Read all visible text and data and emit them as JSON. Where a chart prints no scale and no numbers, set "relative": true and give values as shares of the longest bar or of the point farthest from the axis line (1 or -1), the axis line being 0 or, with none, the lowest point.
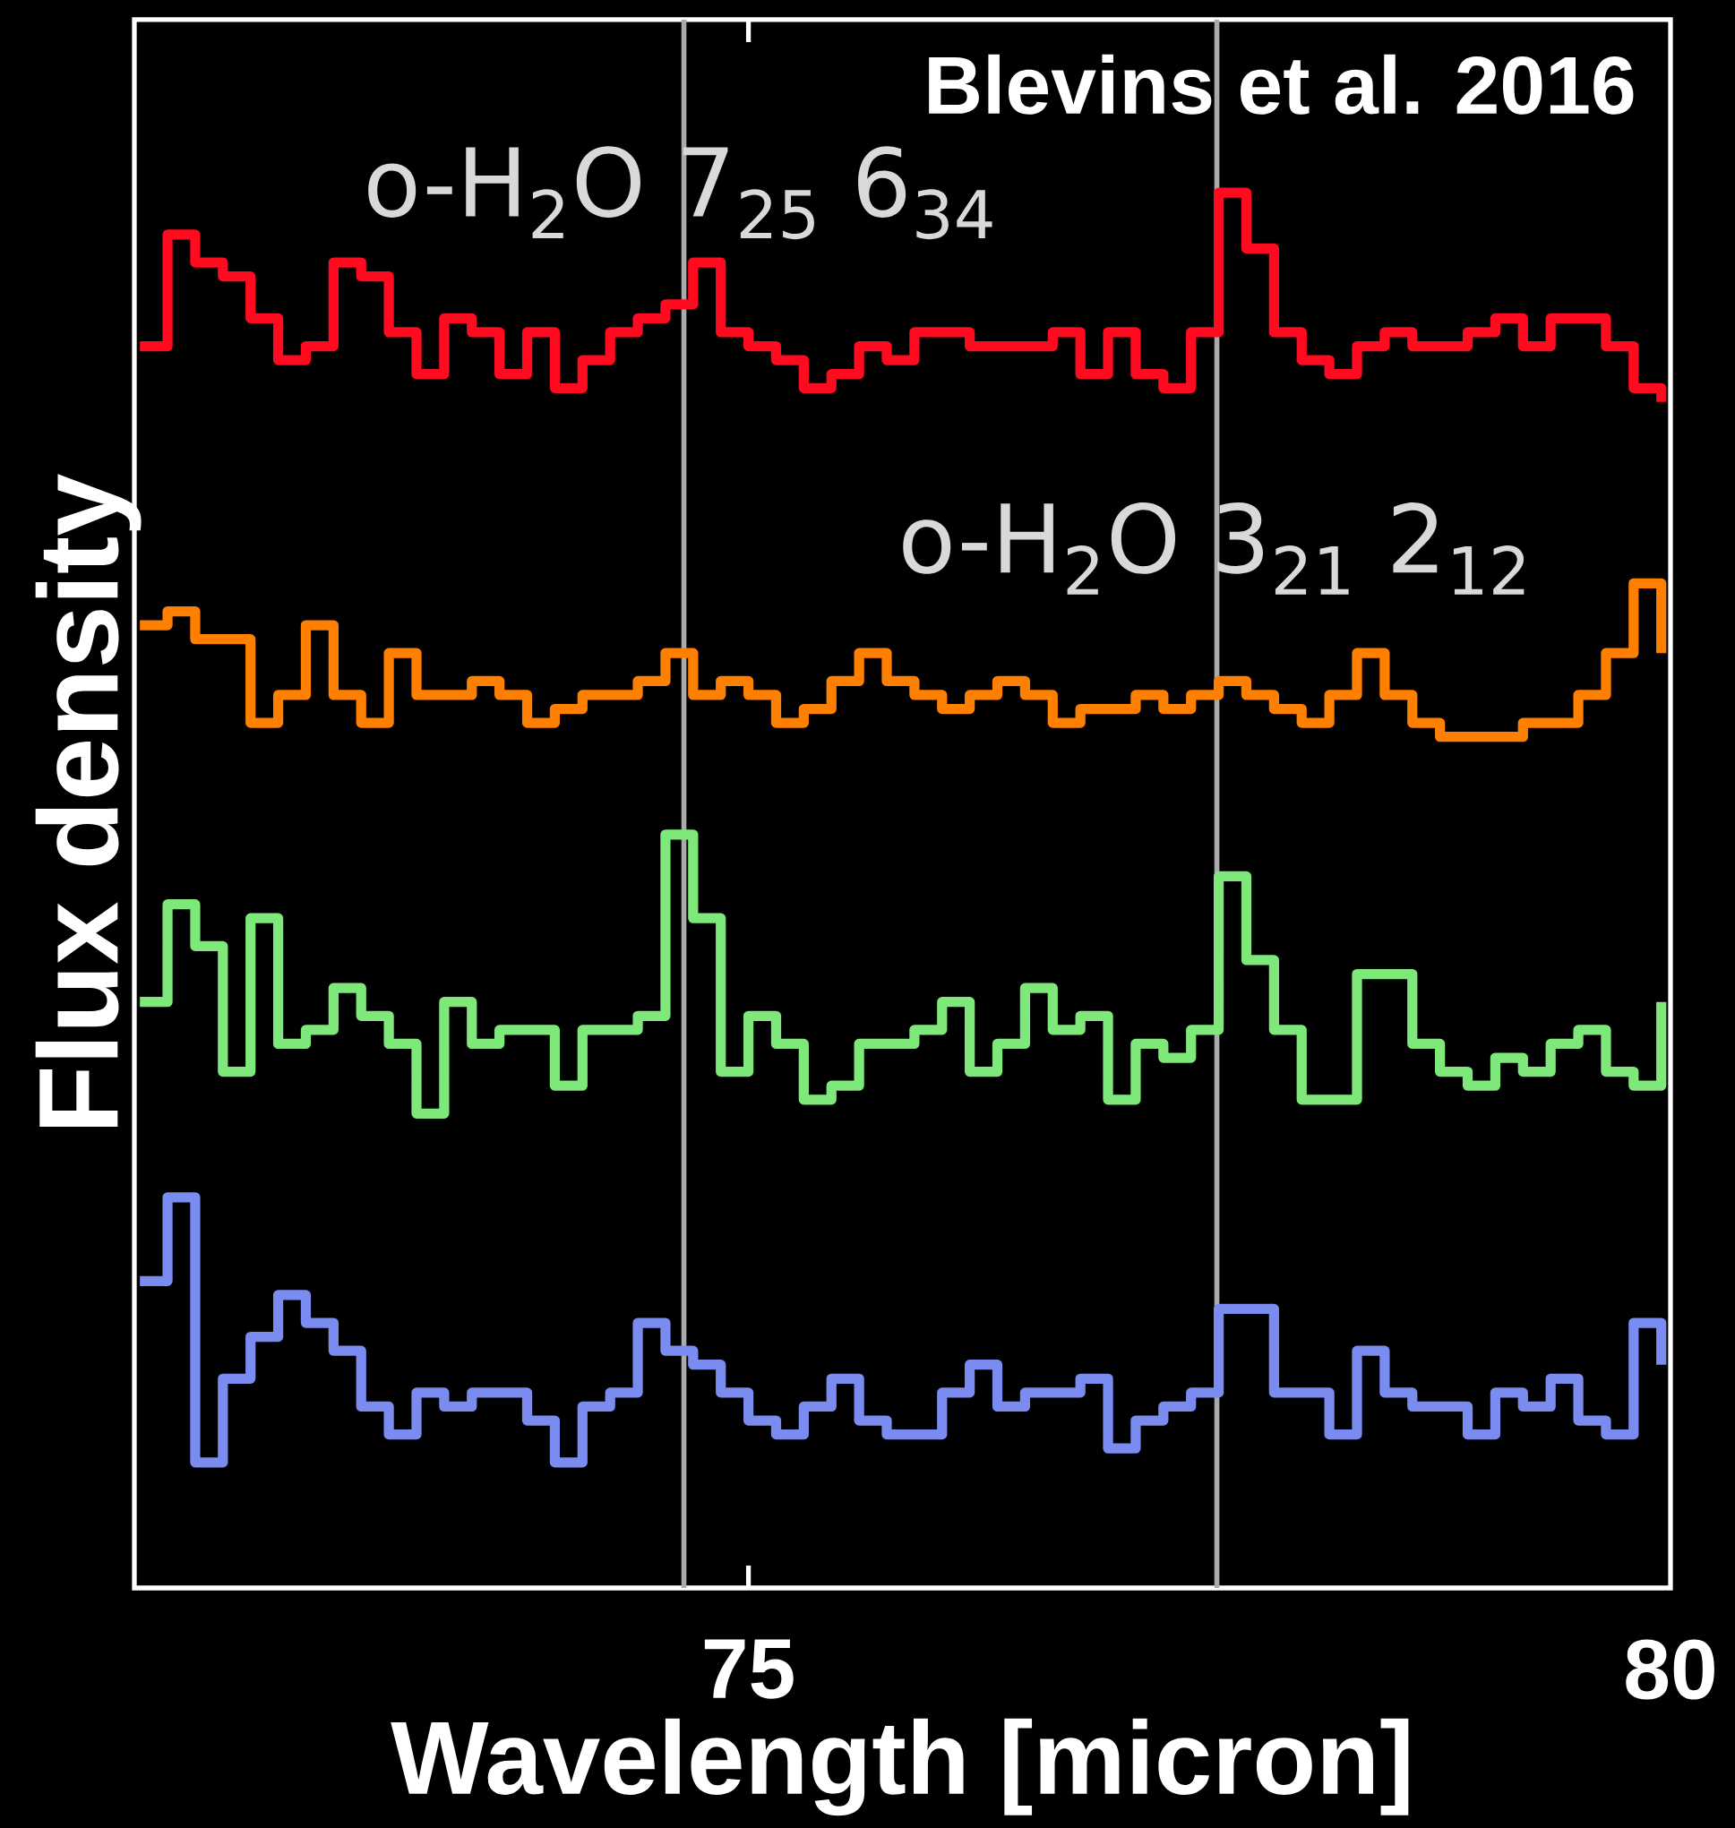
{
  "chart_data": {
    "type": "step",
    "relative": true,
    "xlabel": "Wavelength [micron]",
    "ylabel": "Flux density",
    "xlim": [
      71.67,
      80
    ],
    "xticks": [
      {
        "value": 75,
        "label": "75"
      },
      {
        "value": 80,
        "label": "80"
      }
    ],
    "x": [
      71.7,
      71.85,
      72.0,
      72.15,
      72.3,
      72.45,
      72.6,
      72.75,
      72.9,
      73.05,
      73.2,
      73.35,
      73.5,
      73.65,
      73.8,
      73.95,
      74.1,
      74.25,
      74.4,
      74.55,
      74.7,
      74.85,
      75.0,
      75.15,
      75.3,
      75.45,
      75.6,
      75.75,
      75.9,
      76.05,
      76.2,
      76.35,
      76.5,
      76.65,
      76.8,
      76.95,
      77.1,
      77.25,
      77.4,
      77.55,
      77.7,
      77.85,
      78.0,
      78.15,
      78.3,
      78.45,
      78.6,
      78.75,
      78.9,
      79.05,
      79.2,
      79.35,
      79.5,
      79.65,
      79.8,
      79.95
    ],
    "series": [
      {
        "color": "#ff0a1e",
        "values": [
          0.89,
          0.97,
          0.95,
          0.94,
          0.91,
          0.88,
          0.89,
          0.95,
          0.94,
          0.9,
          0.87,
          0.91,
          0.9,
          0.87,
          0.9,
          0.86,
          0.88,
          0.9,
          0.91,
          0.92,
          0.95,
          0.9,
          0.89,
          0.88,
          0.86,
          0.87,
          0.89,
          0.88,
          0.9,
          0.9,
          0.89,
          0.89,
          0.89,
          0.9,
          0.87,
          0.9,
          0.87,
          0.86,
          0.9,
          1.0,
          0.96,
          0.9,
          0.88,
          0.87,
          0.89,
          0.9,
          0.89,
          0.89,
          0.9,
          0.91,
          0.89,
          0.91,
          0.91,
          0.89,
          0.86,
          0.85
        ]
      },
      {
        "color": "#ff7f00",
        "values": [
          0.69,
          0.7,
          0.68,
          0.68,
          0.62,
          0.64,
          0.69,
          0.64,
          0.62,
          0.67,
          0.64,
          0.64,
          0.65,
          0.64,
          0.62,
          0.63,
          0.64,
          0.64,
          0.65,
          0.67,
          0.64,
          0.65,
          0.64,
          0.62,
          0.63,
          0.65,
          0.67,
          0.65,
          0.64,
          0.63,
          0.64,
          0.65,
          0.64,
          0.62,
          0.63,
          0.63,
          0.64,
          0.63,
          0.64,
          0.65,
          0.64,
          0.63,
          0.62,
          0.64,
          0.67,
          0.64,
          0.62,
          0.61,
          0.61,
          0.61,
          0.62,
          0.62,
          0.64,
          0.67,
          0.72,
          0.67
        ]
      },
      {
        "color": "#7ee87a",
        "values": [
          0.42,
          0.49,
          0.46,
          0.37,
          0.48,
          0.39,
          0.4,
          0.43,
          0.41,
          0.39,
          0.34,
          0.42,
          0.39,
          0.4,
          0.4,
          0.36,
          0.4,
          0.4,
          0.41,
          0.54,
          0.48,
          0.37,
          0.41,
          0.39,
          0.35,
          0.36,
          0.39,
          0.39,
          0.4,
          0.42,
          0.37,
          0.39,
          0.43,
          0.4,
          0.41,
          0.35,
          0.39,
          0.38,
          0.4,
          0.51,
          0.45,
          0.4,
          0.35,
          0.35,
          0.44,
          0.44,
          0.39,
          0.37,
          0.36,
          0.38,
          0.37,
          0.39,
          0.4,
          0.37,
          0.36,
          0.42
        ]
      },
      {
        "color": "#7a8cf0",
        "values": [
          0.22,
          0.28,
          0.09,
          0.15,
          0.18,
          0.21,
          0.19,
          0.17,
          0.13,
          0.11,
          0.14,
          0.13,
          0.14,
          0.14,
          0.12,
          0.09,
          0.13,
          0.14,
          0.19,
          0.17,
          0.16,
          0.14,
          0.12,
          0.11,
          0.13,
          0.15,
          0.12,
          0.11,
          0.11,
          0.14,
          0.16,
          0.13,
          0.14,
          0.14,
          0.15,
          0.1,
          0.12,
          0.13,
          0.14,
          0.2,
          0.2,
          0.14,
          0.14,
          0.11,
          0.17,
          0.14,
          0.13,
          0.13,
          0.11,
          0.14,
          0.13,
          0.15,
          0.12,
          0.11,
          0.19,
          0.16
        ]
      }
    ],
    "ref_lines": [
      {
        "axis": "x",
        "value": 74.65,
        "color": "#aaaaaa"
      },
      {
        "axis": "x",
        "value": 77.54,
        "color": "#aaaaaa"
      }
    ],
    "annotations": [
      {
        "text": "o-H$_{2}$O 7$_{25}$ 6$_{34}$",
        "x": 74.63,
        "y": 1.0
      },
      {
        "text": "o-H$_{2}$O 3$_{21}$ 2$_{12}$",
        "x": 77.53,
        "y": 0.745
      },
      "Blevins et al. 2016"
    ],
    "marker": "none"
  }
}
